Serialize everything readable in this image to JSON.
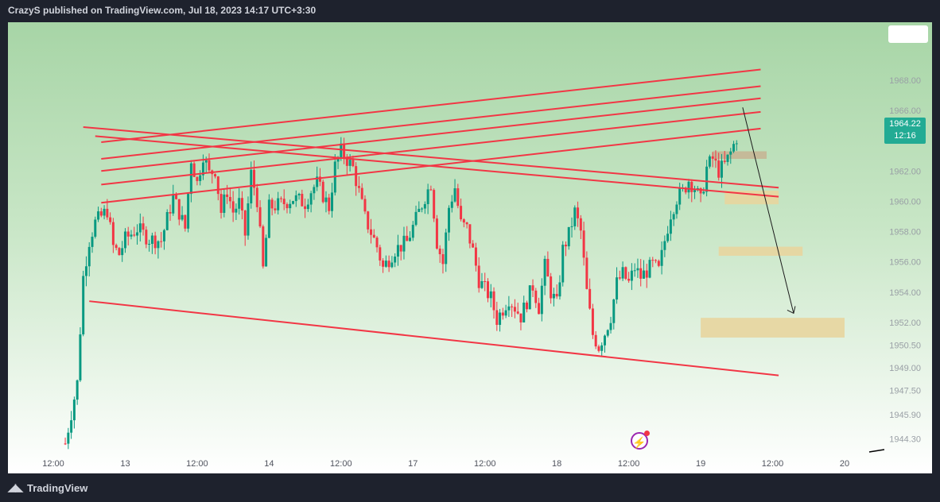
{
  "header": {
    "title": "CrazyS published on TradingView.com, Jul 18, 2023 14:17 UTC+3:30"
  },
  "footer": {
    "brand": "TradingView",
    "logo_icon": "tradingview-logo-icon"
  },
  "price_label": {
    "price": "1964.22",
    "countdown": "12:16",
    "color": "#22ab94"
  },
  "colors": {
    "up": "#089981",
    "down": "#f23645",
    "trendline": "#f23645",
    "zone": "#e8d59e",
    "zone_brown": "#c9a98a"
  },
  "chart_data": {
    "type": "candlestick",
    "title": "",
    "y_axis": {
      "range": [
        1943.6,
        1971.4
      ],
      "ticks": [
        "1968.00",
        "1966.00",
        "1964.00",
        "1962.00",
        "1960.00",
        "1958.00",
        "1956.00",
        "1954.00",
        "1952.00",
        "1950.50",
        "1949.00",
        "1947.50",
        "1945.90",
        "1944.30"
      ]
    },
    "x_axis": {
      "time_range_hours": [
        0,
        120
      ],
      "ticks": [
        {
          "label": "12:00",
          "t": -4
        },
        {
          "label": "13",
          "t": 8
        },
        {
          "label": "12:00",
          "t": 20
        },
        {
          "label": "14",
          "t": 32
        },
        {
          "label": "12:00",
          "t": 44
        },
        {
          "label": "17",
          "t": 56
        },
        {
          "label": "12:00",
          "t": 68
        },
        {
          "label": "18",
          "t": 80
        },
        {
          "label": "12:00",
          "t": 92
        },
        {
          "label": "19",
          "t": 104
        },
        {
          "label": "12:00",
          "t": 116
        },
        {
          "label": "20",
          "t": 128
        }
      ]
    },
    "price_path": [
      [
        -2,
        1944
      ],
      [
        0,
        1948
      ],
      [
        1,
        1955
      ],
      [
        2,
        1957.4
      ],
      [
        3,
        1958.6
      ],
      [
        5,
        1959.4
      ],
      [
        6,
        1957
      ],
      [
        7,
        1956.5
      ],
      [
        8,
        1957.5
      ],
      [
        10,
        1958.2
      ],
      [
        12,
        1957.5
      ],
      [
        14,
        1957.4
      ],
      [
        16,
        1960.3
      ],
      [
        18,
        1958.2
      ],
      [
        19,
        1962.8
      ],
      [
        20,
        1961.2
      ],
      [
        21,
        1963.1
      ],
      [
        22,
        1961.8
      ],
      [
        23,
        1962.1
      ],
      [
        24,
        1959.3
      ],
      [
        25,
        1960.7
      ],
      [
        26,
        1959.3
      ],
      [
        27,
        1959.9
      ],
      [
        28,
        1957.8
      ],
      [
        29,
        1961.8
      ],
      [
        30,
        1960.1
      ],
      [
        31,
        1955.5
      ],
      [
        32,
        1959.6
      ],
      [
        34,
        1959.8
      ],
      [
        36,
        1960.2
      ],
      [
        38,
        1959.9
      ],
      [
        39,
        1960.7
      ],
      [
        40,
        1961.2
      ],
      [
        42,
        1959.6
      ],
      [
        43,
        1962.3
      ],
      [
        44,
        1963.3
      ],
      [
        46,
        1962.2
      ],
      [
        47,
        1960.6
      ],
      [
        48,
        1958.9
      ],
      [
        50,
        1957.0
      ],
      [
        51,
        1955.6
      ],
      [
        53,
        1956.8
      ],
      [
        55,
        1957.3
      ],
      [
        57,
        1959.3
      ],
      [
        58,
        1960.3
      ],
      [
        59,
        1961.2
      ],
      [
        60,
        1957.3
      ],
      [
        61,
        1955.9
      ],
      [
        62,
        1959.6
      ],
      [
        63,
        1960.9
      ],
      [
        64,
        1958.5
      ],
      [
        65,
        1958.2
      ],
      [
        66,
        1956.7
      ],
      [
        67,
        1954.8
      ],
      [
        69,
        1953.6
      ],
      [
        70,
        1952.2
      ],
      [
        72,
        1953.6
      ],
      [
        74,
        1952.4
      ],
      [
        76,
        1954.4
      ],
      [
        77,
        1953.0
      ],
      [
        78,
        1955.7
      ],
      [
        79,
        1954.0
      ],
      [
        80,
        1953.2
      ],
      [
        81,
        1956.8
      ],
      [
        82,
        1957.8
      ],
      [
        83,
        1959.3
      ],
      [
        84,
        1958.0
      ],
      [
        85,
        1954.0
      ],
      [
        86,
        1951.2
      ],
      [
        87,
        1950.4
      ],
      [
        88,
        1951.3
      ],
      [
        89,
        1952.4
      ],
      [
        90,
        1954.6
      ],
      [
        91,
        1955.2
      ],
      [
        92,
        1954.6
      ],
      [
        93,
        1955.6
      ],
      [
        94,
        1955.0
      ],
      [
        95,
        1955.4
      ],
      [
        96,
        1955.8
      ],
      [
        97,
        1955.4
      ],
      [
        98,
        1957.4
      ],
      [
        99,
        1959.2
      ],
      [
        100,
        1960.2
      ],
      [
        101,
        1960.6
      ],
      [
        102,
        1961.4
      ],
      [
        103,
        1960.9
      ],
      [
        104,
        1960.0
      ],
      [
        105,
        1962.2
      ],
      [
        106,
        1962.8
      ],
      [
        107,
        1962.0
      ],
      [
        108,
        1962.4
      ],
      [
        109,
        1963.2
      ],
      [
        110,
        1964.22
      ]
    ]
  },
  "annotations": {
    "trendlines_count": 8,
    "zones_count": 5,
    "arrow": "projection-arrow",
    "bolt_icon": "lightning-bolt-icon"
  }
}
